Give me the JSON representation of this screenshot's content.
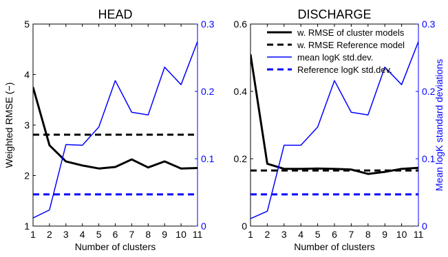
{
  "chart_data": [
    {
      "type": "line",
      "title": "HEAD",
      "xlabel": "Number of clusters",
      "ylabel": "Weighted RMSE (−)",
      "y2label": "",
      "x": [
        1,
        2,
        3,
        4,
        5,
        6,
        7,
        8,
        9,
        10,
        11
      ],
      "xlim": [
        1,
        11
      ],
      "ylim": [
        1,
        5
      ],
      "y2lim": [
        0,
        0.3
      ],
      "xticks": [
        "1",
        "2",
        "3",
        "4",
        "5",
        "6",
        "7",
        "8",
        "9",
        "10",
        "11"
      ],
      "yticks": [
        "1",
        "2",
        "3",
        "4",
        "5"
      ],
      "y2ticks": [
        "0",
        "0.1",
        "0.2",
        "0.3"
      ],
      "series": [
        {
          "axis": "left",
          "color": "#000000",
          "dashed": false,
          "width": 3,
          "values": [
            3.75,
            2.6,
            2.28,
            2.2,
            2.14,
            2.17,
            2.32,
            2.16,
            2.28,
            2.14,
            2.15
          ]
        },
        {
          "axis": "left",
          "color": "#000000",
          "dashed": true,
          "width": 3,
          "values": [
            2.81,
            2.81,
            2.81,
            2.81,
            2.81,
            2.81,
            2.81,
            2.81,
            2.81,
            2.81,
            2.81
          ]
        },
        {
          "axis": "right",
          "color": "#0000ff",
          "dashed": false,
          "width": 1.5,
          "values": [
            0.012,
            0.024,
            0.121,
            0.12,
            0.147,
            0.216,
            0.169,
            0.165,
            0.236,
            0.21,
            0.274
          ]
        },
        {
          "axis": "right",
          "color": "#0000ff",
          "dashed": true,
          "width": 3,
          "values": [
            0.047,
            0.047,
            0.047,
            0.047,
            0.047,
            0.047,
            0.047,
            0.047,
            0.047,
            0.047,
            0.047
          ]
        }
      ]
    },
    {
      "type": "line",
      "title": "DISCHARGE",
      "xlabel": "Number of clusters",
      "ylabel": "",
      "y2label": "Mean logK standard deviations",
      "x": [
        1,
        2,
        3,
        4,
        5,
        6,
        7,
        8,
        9,
        10,
        11
      ],
      "xlim": [
        1,
        11
      ],
      "ylim": [
        0,
        0.6
      ],
      "y2lim": [
        0,
        0.3
      ],
      "xticks": [
        "1",
        "2",
        "3",
        "4",
        "5",
        "6",
        "7",
        "8",
        "9",
        "10",
        "11"
      ],
      "yticks": [
        "0",
        "0.2",
        "0.4",
        "0.6"
      ],
      "y2ticks": [
        "0",
        "0.1",
        "0.2",
        "0.3"
      ],
      "series": [
        {
          "name": "w. RMSE of cluster models",
          "axis": "left",
          "color": "#000000",
          "dashed": false,
          "width": 3,
          "values": [
            0.51,
            0.185,
            0.17,
            0.17,
            0.171,
            0.17,
            0.168,
            0.155,
            0.161,
            0.17,
            0.173
          ]
        },
        {
          "name": "w. RMSE Reference model",
          "axis": "left",
          "color": "#000000",
          "dashed": true,
          "width": 3,
          "values": [
            0.165,
            0.165,
            0.165,
            0.165,
            0.165,
            0.165,
            0.165,
            0.165,
            0.165,
            0.165,
            0.165
          ]
        },
        {
          "name": "mean logK std.dev.",
          "axis": "right",
          "color": "#0000ff",
          "dashed": false,
          "width": 1.5,
          "values": [
            0.011,
            0.022,
            0.12,
            0.12,
            0.147,
            0.216,
            0.169,
            0.165,
            0.236,
            0.21,
            0.274
          ]
        },
        {
          "name": "Reference logK std.dev.",
          "axis": "right",
          "color": "#0000ff",
          "dashed": true,
          "width": 3,
          "values": [
            0.047,
            0.047,
            0.047,
            0.047,
            0.047,
            0.047,
            0.047,
            0.047,
            0.047,
            0.047,
            0.047
          ]
        }
      ],
      "legend": {
        "placement": "top-right"
      }
    }
  ]
}
